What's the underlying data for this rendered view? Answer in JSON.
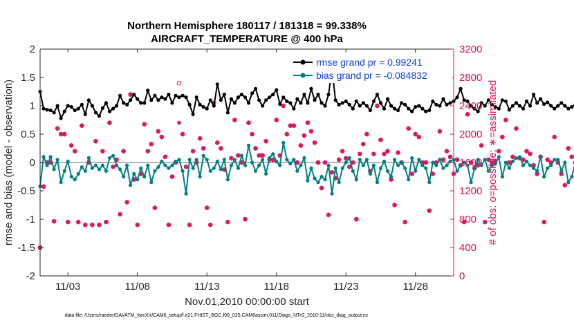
{
  "chart_data": {
    "type": "line",
    "title": "Northern Hemisphere 180117 / 181318 = 99.338%",
    "subtitle": "AIRCRAFT_TEMPERATURE @ 400 hPa",
    "xlabel": "Nov.01,2010 00:00:00 start",
    "ylabel_left": "rmse and bias (model - observation)",
    "ylabel_right": "# of obs: o=possible; ∗=assimilated",
    "footer": "data file: /Users/raeder/DAI/ATM_forcXX/CAM6_setup/f.e21.FHIST_BGC.f09_025.CAM6assim.011/Diags_NTrS_2010-11/obs_diag_output.nc",
    "x_range": [
      1.0,
      30.75
    ],
    "ylim_left": [
      -2,
      2
    ],
    "ylim_right": [
      0,
      3200
    ],
    "x_tick_values": [
      3,
      8,
      13,
      18,
      23,
      28
    ],
    "x_tick_labels": [
      "11/03",
      "11/08",
      "11/13",
      "11/18",
      "11/23",
      "11/28"
    ],
    "y_left_ticks": [
      -2,
      -1.5,
      -1,
      -0.5,
      0,
      0.5,
      1,
      1.5,
      2
    ],
    "y_left_tick_labels": [
      "-2",
      "-1.5",
      "-1",
      "-0.5",
      "0",
      "0.5",
      "1",
      "1.5",
      "2"
    ],
    "y_right_ticks": [
      0,
      400,
      800,
      1200,
      1600,
      2000,
      2400,
      2800,
      3200
    ],
    "y_right_tick_labels": [
      "0",
      "400",
      "800",
      "1200",
      "1600",
      "2000",
      "2400",
      "2800",
      "3200"
    ],
    "legend": {
      "position": "top-right",
      "entries": [
        "rmse grand pr = 0.99241",
        "bias grand pr = -0.084832"
      ]
    },
    "colors": {
      "rmse": "#000000",
      "bias": "#008080",
      "counts": "#d6135c",
      "zero_line": "#b4b4b4"
    },
    "x_step_days": 0.25,
    "series": [
      {
        "name": "rmse",
        "axis": "left",
        "values": [
          1.25,
          0.95,
          0.93,
          0.92,
          0.88,
          1.0,
          0.78,
          0.9,
          1.0,
          0.98,
          0.92,
          0.95,
          1.02,
          0.85,
          1.1,
          1.0,
          0.88,
          0.82,
          0.96,
          1.05,
          0.9,
          0.95,
          1.0,
          1.18,
          1.05,
          1.02,
          1.1,
          1.2,
          1.12,
          1.05,
          1.05,
          1.27,
          1.1,
          1.18,
          1.1,
          1.15,
          1.12,
          1.2,
          1.05,
          1.18,
          1.15,
          1.18,
          1.15,
          1.02,
          0.85,
          1.15,
          1.02,
          0.98,
          0.95,
          1.1,
          1.0,
          1.38,
          1.1,
          1.2,
          0.88,
          1.12,
          1.05,
          1.15,
          1.2,
          1.15,
          1.05,
          1.22,
          1.3,
          1.1,
          1.0,
          1.1,
          1.15,
          1.2,
          1.28,
          1.03,
          1.15,
          1.08,
          1.05,
          0.95,
          1.12,
          1.05,
          1.2,
          1.05,
          1.3,
          1.1,
          1.2,
          1.05,
          1.0,
          1.2,
          1.65,
          1.1,
          1.02,
          1.05,
          1.08,
          1.02,
          0.95,
          1.08,
          1.0,
          1.05,
          1.0,
          0.92,
          1.08,
          1.2,
          1.05,
          0.95,
          1.12,
          1.0,
          0.95,
          0.92,
          1.05,
          1.02,
          0.95,
          0.9,
          0.98,
          1.0,
          0.95,
          0.9,
          0.92,
          1.08,
          1.02,
          1.0,
          1.12,
          1.02,
          1.05,
          1.08,
          1.15,
          1.3,
          1.1,
          1.08,
          1.0,
          0.95,
          0.9,
          1.05,
          1.0,
          1.1,
          1.02,
          0.98,
          0.95,
          1.1,
          1.08,
          0.93,
          1.0,
          1.05,
          1.0,
          0.95,
          1.08,
          1.0,
          1.2,
          1.05,
          1.12,
          1.03,
          1.06,
          1.0,
          0.95,
          1.0,
          1.05,
          1.0,
          0.95,
          0.98,
          1.02,
          1.05,
          0.92,
          1.02,
          0.98,
          1.0,
          1.1,
          1.18,
          1.05,
          1.0,
          1.05,
          1.15,
          1.05,
          0.95,
          1.0,
          0.95,
          1.0,
          1.1,
          1.05,
          1.0,
          1.0,
          0.9,
          0.95,
          1.0,
          0.9,
          1.02,
          1.0,
          1.05,
          0.95,
          0.98,
          1.0,
          0.95,
          1.02,
          1.0,
          1.05,
          1.0,
          0.95,
          0.9,
          1.0,
          1.05,
          1.0,
          0.98,
          1.02,
          1.12,
          1.1,
          0.98,
          1.0,
          1.05,
          1.02
        ]
      },
      {
        "name": "bias",
        "axis": "left",
        "values": [
          -0.42,
          0.1,
          -0.05,
          0.1,
          -0.12,
          0.05,
          -0.35,
          -0.15,
          0.02,
          -0.25,
          -0.3,
          -0.2,
          -0.08,
          -0.15,
          0.08,
          -0.1,
          -0.05,
          -0.12,
          -0.05,
          -0.15,
          0.08,
          0.12,
          -0.05,
          -0.12,
          -0.25,
          -0.05,
          -0.4,
          -0.2,
          -0.3,
          -0.1,
          -0.25,
          -0.05,
          -0.35,
          -0.15,
          -0.08,
          0.02,
          -0.05,
          -0.1,
          -0.05,
          0.02,
          0.05,
          -0.15,
          -0.55,
          0.05,
          -0.1,
          0.05,
          -0.25,
          0.12,
          0.05,
          -0.15,
          -0.1,
          0.02,
          -0.12,
          0.05,
          -0.3,
          -0.05,
          0.05,
          -0.1,
          0.12,
          -0.05,
          0.3,
          0.0,
          -0.15,
          -0.05,
          0.05,
          -0.2,
          0.08,
          0.15,
          0.02,
          -0.05,
          0.35,
          0.05,
          -0.02,
          0.05,
          -0.15,
          -0.05,
          0.08,
          -0.32,
          -0.1,
          -0.28,
          -0.35,
          -0.25,
          -0.3,
          -0.05,
          -0.55,
          -0.1,
          -0.35,
          -0.1,
          0.0,
          0.08,
          -0.15,
          -0.3,
          0.05,
          -0.05,
          0.05,
          -0.2,
          -0.05,
          -0.35,
          -0.1,
          0.02,
          -0.15,
          -0.25,
          0.05,
          -0.05,
          0.0,
          -0.1,
          -0.3,
          0.08,
          -0.15,
          0.05,
          -0.05,
          -0.1,
          -0.35,
          0.0,
          -0.05,
          0.05,
          -0.1,
          -0.05,
          0.02,
          0.05,
          -0.15,
          -0.05,
          0.0,
          -0.05,
          -0.35,
          -0.1,
          0.05,
          -0.05,
          0.05,
          -0.15,
          -0.05,
          -0.02,
          0.1,
          -0.25,
          0.0,
          -0.1,
          0.02,
          0.08,
          0.1,
          -0.05,
          0.02,
          -0.05,
          -0.1,
          -0.15,
          0.1,
          -0.25,
          -0.1,
          -0.05,
          0.05,
          0.05,
          -0.15,
          0.0,
          -0.35,
          -0.25,
          0.0,
          -0.1,
          0.05,
          0.12,
          0.2,
          0.05,
          -0.05,
          -0.15,
          -0.3,
          0.0,
          0.05,
          -0.1,
          0.02,
          0.08,
          -0.15,
          -0.05,
          0.1,
          0.0,
          0.05,
          -0.1,
          -0.15,
          0.12,
          0.15,
          0.05,
          0.25,
          -0.35,
          -0.55,
          -0.1,
          0.05,
          0.0,
          0.08,
          0.05,
          -0.2,
          -0.05,
          0.1,
          0.02,
          -0.15,
          -0.3,
          -0.05,
          0.02,
          0.05,
          -0.1,
          -0.35,
          0.0,
          0.05,
          -0.05,
          0.1,
          -0.45,
          -0.15,
          0.08,
          -0.05,
          0.1,
          0.12,
          0.02,
          -0.05,
          0.12
        ]
      },
      {
        "name": "possible",
        "axis": "right",
        "marker": "o",
        "values": [
          400,
          1260,
          1600,
          1600,
          770,
          2080,
          2000,
          2000,
          760,
          1840,
          1760,
          760,
          2120,
          720,
          1600,
          720,
          1900,
          720,
          1760,
          760,
          2160,
          1540,
          1640,
          870,
          1760,
          1040,
          2560,
          1360,
          720,
          1440,
          2140,
          1760,
          1860,
          960,
          2040,
          1960,
          1680,
          720,
          1400,
          1600,
          2720,
          2000,
          1540,
          720,
          1760,
          1600,
          1940,
          1800,
          960,
          720,
          2440,
          1880,
          1800,
          1500,
          760,
          1660,
          2200,
          1700,
          1600,
          800,
          2160,
          2000,
          1800,
          1700,
          1700,
          1900,
          1640,
          1640,
          2200,
          1700,
          2400,
          2000,
          2120,
          2120,
          1600,
          1840,
          1980,
          2160,
          2040,
          1880,
          1600,
          1240,
          1600,
          860,
          1460,
          1380,
          1640,
          1760,
          1660,
          1540,
          1600,
          800,
          1720,
          1860,
          2000,
          1480,
          1720,
          2400,
          1920,
          1720,
          1760,
          1360,
          1000,
          1740,
          1600,
          760,
          2080,
          1440,
          2000,
          1960,
          1600,
          1600,
          920,
          1440,
          1600,
          2040,
          1640,
          1760,
          1680,
          1440,
          1640,
          1560,
          760,
          2280,
          1600,
          1520,
          1560,
          1840,
          760,
          1640,
          1600,
          1620,
          1760,
          1960,
          2200,
          1600,
          1680,
          2080,
          1660,
          1640,
          1760,
          1720,
          1560,
          1440,
          1680,
          760,
          1640,
          1600,
          1960,
          1600,
          1440,
          1280,
          1800,
          1680,
          1600,
          1640,
          1520,
          1800,
          1440,
          1600,
          1680,
          1600,
          760,
          2080,
          1600,
          760,
          1600,
          2400,
          1900,
          1600,
          1760,
          1440,
          1560,
          1600,
          760,
          1920,
          1600,
          1640,
          1600,
          1600,
          1720,
          2400,
          1600,
          1800,
          1240,
          2040,
          1560,
          1680,
          1600,
          1600,
          1440,
          1560,
          820,
          1600,
          1520,
          1600,
          880,
          1440,
          680,
          2080,
          2000,
          1520,
          1600,
          780,
          1360,
          1800,
          1680,
          1600,
          1600,
          1400,
          1600,
          1640,
          2160,
          1760
        ]
      },
      {
        "name": "assimilated",
        "axis": "right",
        "marker": "*",
        "values": [
          400,
          1260,
          1600,
          1600,
          770,
          2080,
          2000,
          2000,
          760,
          1840,
          1760,
          760,
          2120,
          720,
          1600,
          720,
          1900,
          720,
          1760,
          760,
          2160,
          1540,
          1640,
          870,
          1760,
          1040,
          2560,
          1360,
          720,
          1440,
          2140,
          1760,
          1860,
          960,
          2040,
          1960,
          1680,
          720,
          1400,
          1600,
          2160,
          2000,
          1540,
          720,
          1760,
          1600,
          1940,
          1800,
          960,
          720,
          2440,
          1880,
          1800,
          1500,
          760,
          1660,
          2200,
          1700,
          1600,
          800,
          2160,
          2000,
          1800,
          1700,
          1700,
          1900,
          1640,
          1640,
          2200,
          1700,
          2400,
          2000,
          2120,
          2120,
          1600,
          1840,
          1980,
          2160,
          2040,
          1880,
          1600,
          1240,
          1600,
          860,
          1460,
          1380,
          1640,
          1760,
          1660,
          1540,
          1600,
          800,
          1720,
          1860,
          2000,
          1480,
          1720,
          2400,
          1920,
          1720,
          1760,
          1360,
          1000,
          1740,
          1600,
          760,
          2080,
          1440,
          2000,
          1960,
          1600,
          1600,
          920,
          1440,
          1600,
          2040,
          1640,
          1760,
          1680,
          1440,
          1640,
          1560,
          760,
          2280,
          1600,
          1520,
          1560,
          1840,
          760,
          1640,
          1600,
          1620,
          1760,
          1960,
          2200,
          1600,
          1680,
          2080,
          1660,
          1640,
          1760,
          1720,
          1560,
          1440,
          1680,
          760,
          1640,
          1600,
          1960,
          1600,
          1440,
          1280,
          1800,
          1680,
          1600,
          1640,
          1520,
          1800,
          1440,
          1600,
          1680,
          1600,
          760,
          2080,
          1600,
          760,
          1600,
          2400,
          1900,
          1600,
          1760,
          1440,
          1560,
          1600,
          760,
          1920,
          1600,
          1640,
          1600,
          1600,
          1720,
          2400,
          1600,
          1800,
          1240,
          2040,
          1560,
          1680,
          1600,
          1600,
          1440,
          1560,
          820,
          1600,
          1520,
          1600,
          880,
          1440,
          680,
          2080,
          2000,
          1520,
          1600,
          780,
          1360,
          1800,
          1680,
          1600,
          1600,
          1400,
          1600,
          1640,
          2160,
          1760
        ]
      }
    ]
  }
}
